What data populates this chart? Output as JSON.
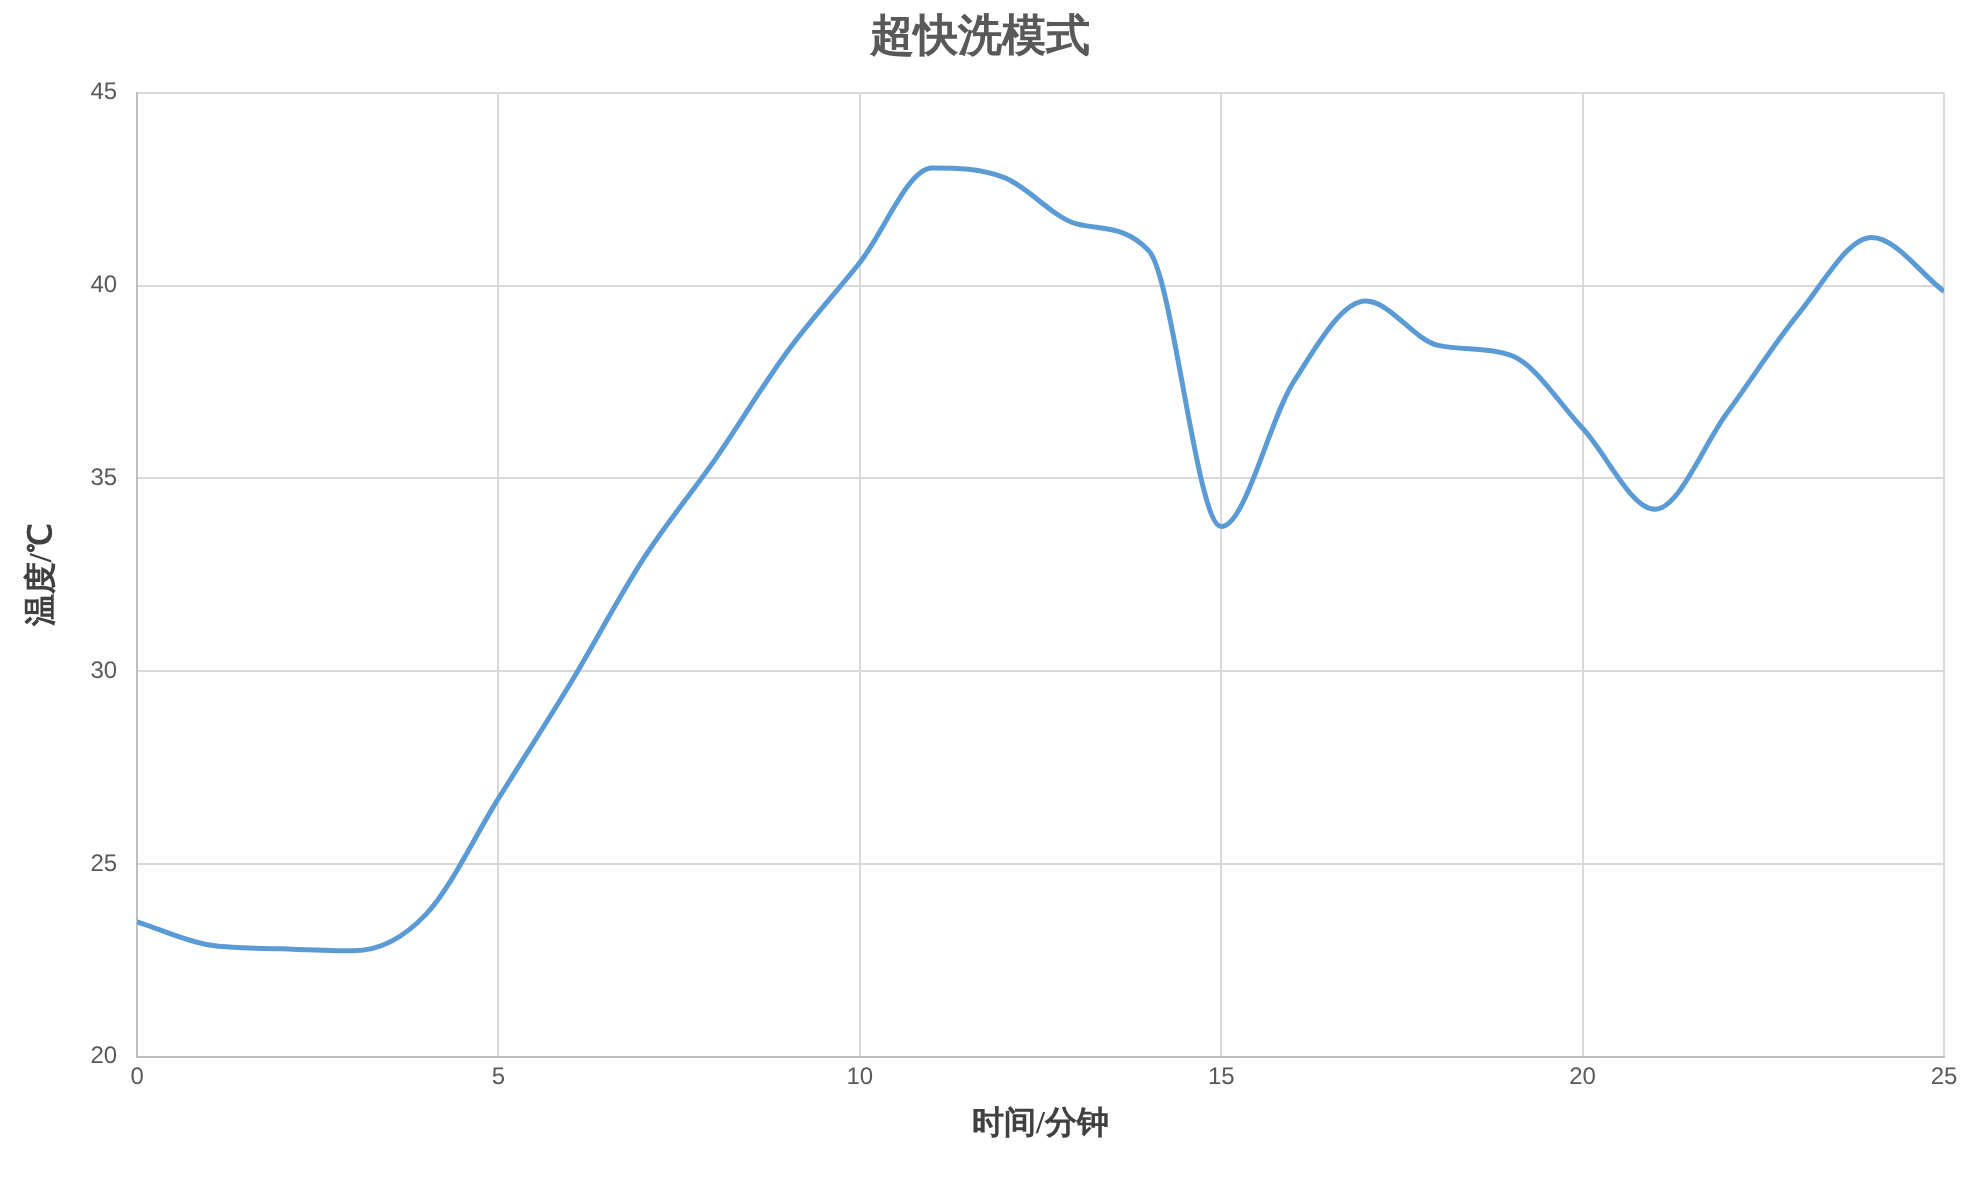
{
  "chart_data": {
    "type": "line",
    "title": "超快洗模式",
    "xlabel": "时间/分钟",
    "ylabel": "温度/℃",
    "x": [
      0,
      1,
      2,
      3,
      4,
      5,
      6,
      7,
      8,
      9,
      10,
      11,
      12,
      13,
      14,
      15,
      16,
      17,
      18,
      19,
      20,
      21,
      22,
      23,
      24,
      25
    ],
    "series": [
      {
        "color": "#5b9bd5",
        "values": [
          23.5,
          22.9,
          22.8,
          22.75,
          23.7,
          26.7,
          29.7,
          32.9,
          35.5,
          38.3,
          40.6,
          43.05,
          42.8,
          41.6,
          40.9,
          33.75,
          37.5,
          39.6,
          38.45,
          38.2,
          36.3,
          34.2,
          36.7,
          39.3,
          41.25,
          39.85
        ]
      }
    ],
    "xlim": [
      0,
      25
    ],
    "xticks": [
      0,
      5,
      10,
      15,
      20,
      25
    ],
    "ylim": [
      20,
      45
    ],
    "yticks": [
      20,
      25,
      30,
      35,
      40,
      45
    ],
    "grid": true,
    "legend": false,
    "marker": "none",
    "line_style": "solid"
  }
}
